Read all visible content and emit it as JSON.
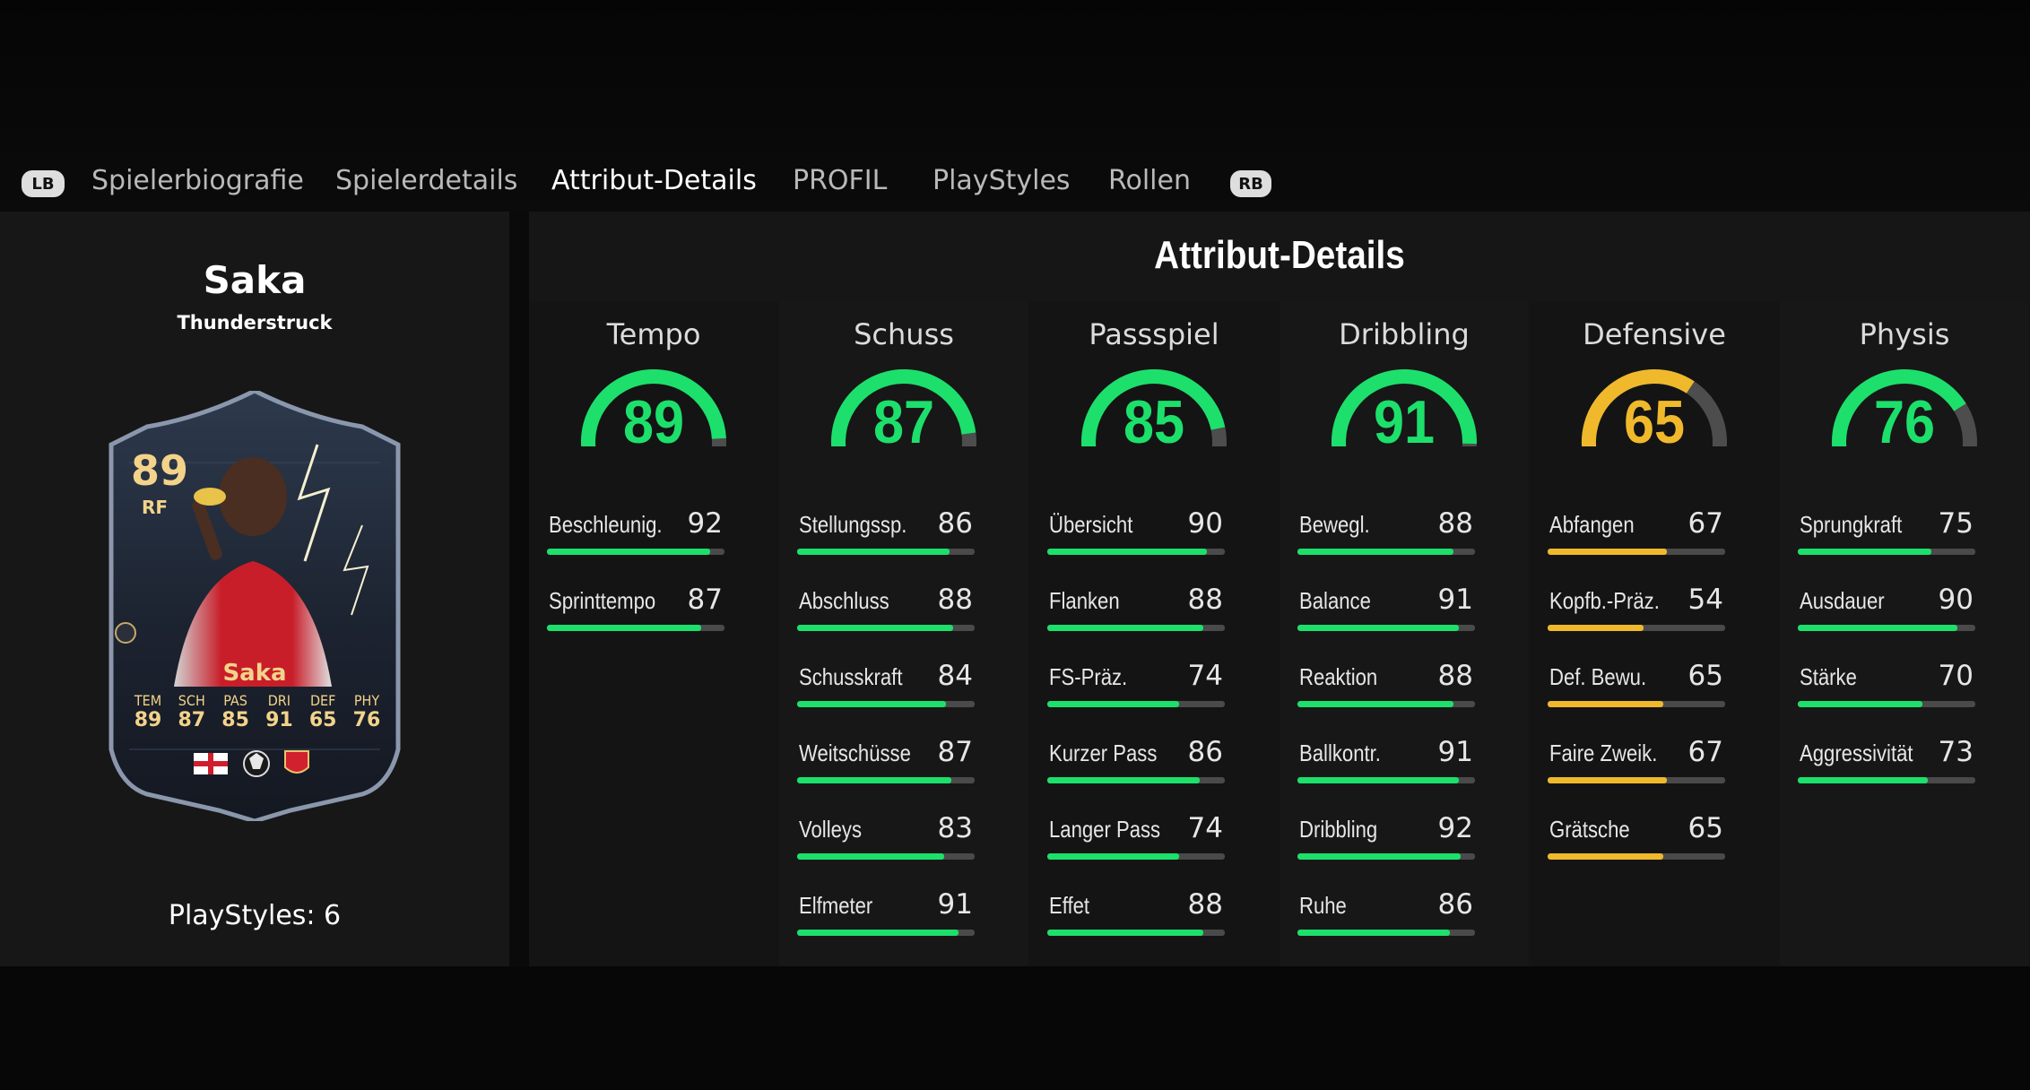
{
  "colors": {
    "high": "#1ce06b",
    "mid": "#f0b92c",
    "track": "#4a4a4a"
  },
  "nav": {
    "lb_label": "LB",
    "rb_label": "RB",
    "tabs": [
      {
        "label": "Spielerbiografie",
        "active": false
      },
      {
        "label": "Spielerdetails",
        "active": false
      },
      {
        "label": "Attribut-Details",
        "active": true
      },
      {
        "label": "PROFIL",
        "active": false
      },
      {
        "label": "PlayStyles",
        "active": false
      },
      {
        "label": "Rollen",
        "active": false
      }
    ]
  },
  "player": {
    "name": "Saka",
    "card_type": "Thunderstruck",
    "playstyles_text": "PlayStyles: 6",
    "card": {
      "rating": "89",
      "position": "RF",
      "name": "Saka",
      "stats": [
        {
          "key": "TEM",
          "value": "89"
        },
        {
          "key": "SCH",
          "value": "87"
        },
        {
          "key": "PAS",
          "value": "85"
        },
        {
          "key": "DRI",
          "value": "91"
        },
        {
          "key": "DEF",
          "value": "65"
        },
        {
          "key": "PHY",
          "value": "76"
        }
      ],
      "badges": [
        "england-flag-icon",
        "premier-league-icon",
        "arsenal-crest-icon"
      ]
    }
  },
  "details": {
    "title": "Attribut-Details",
    "categories": [
      {
        "name": "Tempo",
        "value": 89,
        "attributes": [
          {
            "name": "Beschleunig.",
            "value": 92
          },
          {
            "name": "Sprinttempo",
            "value": 87
          }
        ]
      },
      {
        "name": "Schuss",
        "value": 87,
        "attributes": [
          {
            "name": "Stellungssp.",
            "value": 86
          },
          {
            "name": "Abschluss",
            "value": 88
          },
          {
            "name": "Schusskraft",
            "value": 84
          },
          {
            "name": "Weitschüsse",
            "value": 87
          },
          {
            "name": "Volleys",
            "value": 83
          },
          {
            "name": "Elfmeter",
            "value": 91
          }
        ]
      },
      {
        "name": "Passspiel",
        "value": 85,
        "attributes": [
          {
            "name": "Übersicht",
            "value": 90
          },
          {
            "name": "Flanken",
            "value": 88
          },
          {
            "name": "FS-Präz.",
            "value": 74
          },
          {
            "name": "Kurzer Pass",
            "value": 86
          },
          {
            "name": "Langer Pass",
            "value": 74
          },
          {
            "name": "Effet",
            "value": 88
          }
        ]
      },
      {
        "name": "Dribbling",
        "value": 91,
        "attributes": [
          {
            "name": "Bewegl.",
            "value": 88
          },
          {
            "name": "Balance",
            "value": 91
          },
          {
            "name": "Reaktion",
            "value": 88
          },
          {
            "name": "Ballkontr.",
            "value": 91
          },
          {
            "name": "Dribbling",
            "value": 92
          },
          {
            "name": "Ruhe",
            "value": 86
          }
        ]
      },
      {
        "name": "Defensive",
        "value": 65,
        "attributes": [
          {
            "name": "Abfangen",
            "value": 67
          },
          {
            "name": "Kopfb.-Präz.",
            "value": 54
          },
          {
            "name": "Def. Bewu.",
            "value": 65
          },
          {
            "name": "Faire Zweik.",
            "value": 67
          },
          {
            "name": "Grätsche",
            "value": 65
          }
        ]
      },
      {
        "name": "Physis",
        "value": 76,
        "attributes": [
          {
            "name": "Sprungkraft",
            "value": 75
          },
          {
            "name": "Ausdauer",
            "value": 90
          },
          {
            "name": "Stärke",
            "value": 70
          },
          {
            "name": "Aggressivität",
            "value": 73
          }
        ]
      }
    ]
  }
}
